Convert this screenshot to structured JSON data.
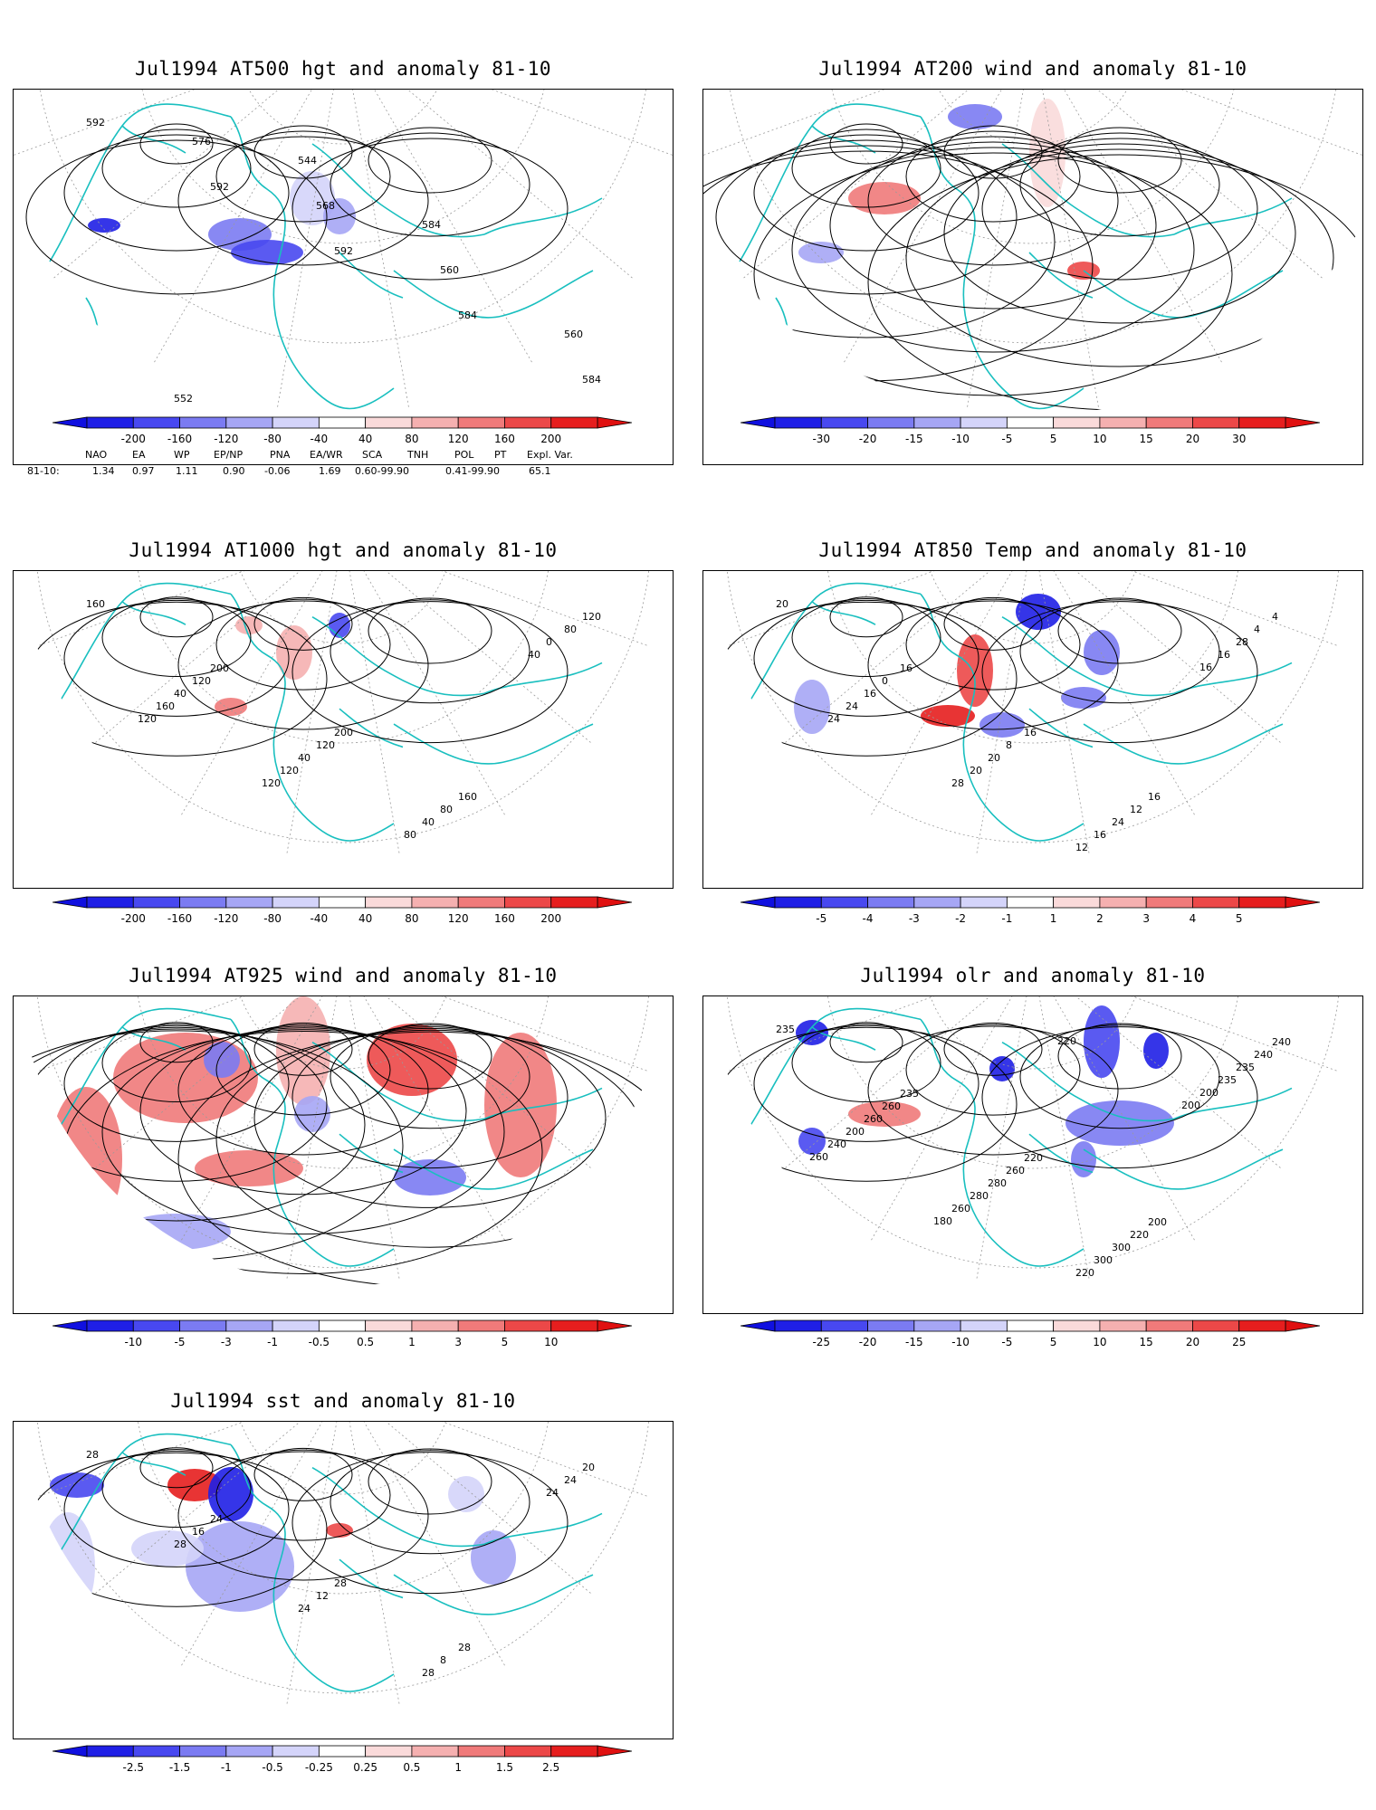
{
  "panels": [
    {
      "id": "p500",
      "title": "Jul1994 AT500 hgt and anomaly 81-10",
      "contour_labels": [
        "592",
        "592",
        "592",
        "584",
        "584",
        "576",
        "568",
        "560",
        "560",
        "552",
        "544",
        "584"
      ],
      "colorbar": [
        "-200",
        "-160",
        "-120",
        "-80",
        "-40",
        "40",
        "80",
        "120",
        "160",
        "200"
      ]
    },
    {
      "id": "p200",
      "title": "Jul1994 AT200 wind and anomaly 81-10",
      "contour_labels": [],
      "colorbar": [
        "-30",
        "-20",
        "-15",
        "-10",
        "-5",
        "5",
        "10",
        "15",
        "20",
        "30"
      ]
    },
    {
      "id": "p1000",
      "title": "Jul1994 AT1000 hgt and anomaly 81-10",
      "contour_labels": [
        "160",
        "200",
        "200",
        "160",
        "120",
        "120",
        "120",
        "80",
        "80",
        "40",
        "40",
        "40",
        "0",
        "160",
        "120",
        "80",
        "40",
        "120",
        "120"
      ],
      "colorbar": [
        "-200",
        "-160",
        "-120",
        "-80",
        "-40",
        "40",
        "80",
        "120",
        "160",
        "200"
      ]
    },
    {
      "id": "p850",
      "title": "Jul1994 AT850 Temp and anomaly 81-10",
      "contour_labels": [
        "20",
        "16",
        "16",
        "16",
        "4",
        "0",
        "8",
        "12",
        "4",
        "16",
        "20",
        "24",
        "28",
        "24",
        "20",
        "16",
        "16",
        "24",
        "28",
        "12",
        "16"
      ],
      "colorbar": [
        "-5",
        "-4",
        "-3",
        "-2",
        "-1",
        "1",
        "2",
        "3",
        "4",
        "5"
      ]
    },
    {
      "id": "p925",
      "title": "Jul1994 AT925 wind and anomaly 81-10",
      "contour_labels": [],
      "colorbar": [
        "-10",
        "-5",
        "-3",
        "-1",
        "-0.5",
        "0.5",
        "1",
        "3",
        "5",
        "10"
      ]
    },
    {
      "id": "polr",
      "title": "Jul1994 olr and anomaly 81-10",
      "contour_labels": [
        "235",
        "235",
        "220",
        "200",
        "240",
        "260",
        "260",
        "220",
        "240",
        "260",
        "280",
        "300",
        "235",
        "200",
        "280",
        "300",
        "235",
        "240",
        "260",
        "220",
        "200",
        "260",
        "180",
        "220",
        "200"
      ],
      "colorbar": [
        "-25",
        "-20",
        "-15",
        "-10",
        "-5",
        "5",
        "10",
        "15",
        "20",
        "25"
      ]
    },
    {
      "id": "psst",
      "title": "Jul1994 sst and anomaly 81-10",
      "contour_labels": [
        "28",
        "24",
        "28",
        "28",
        "20",
        "16",
        "12",
        "8",
        "24",
        "28",
        "24",
        "28",
        "24"
      ],
      "colorbar": [
        "-2.5",
        "-1.5",
        "-1",
        "-0.5",
        "-0.25",
        "0.25",
        "0.5",
        "1",
        "1.5",
        "2.5"
      ]
    }
  ],
  "indices": {
    "headers": [
      "NAO",
      "EA",
      "WP",
      "EP/NP",
      "PNA",
      "EA/WR",
      "SCA",
      "TNH",
      "POL",
      "PT",
      "Expl. Var."
    ],
    "row_label": "81-10:",
    "values": [
      "1.34",
      "0.97",
      "1.11",
      "0.90",
      "-0.06",
      "1.69",
      "0.60-99.90",
      "0.41-99.90",
      "65.1"
    ]
  },
  "colors": {
    "blue_scale": [
      "#1f1fe6",
      "#4848f0",
      "#7b7bf2",
      "#a6a6f5",
      "#d4d4fa"
    ],
    "red_scale": [
      "#fadada",
      "#f5b0b0",
      "#f07a7a",
      "#ec4848",
      "#e61e1e"
    ],
    "coast": "#19bfbf",
    "contour": "#000000",
    "grid": "#9a9a9a"
  }
}
